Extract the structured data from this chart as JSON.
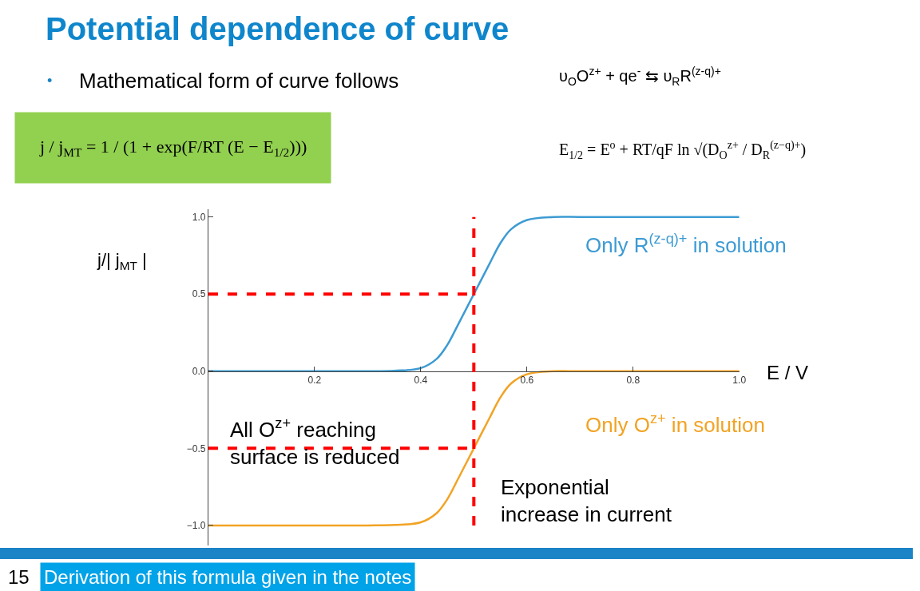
{
  "chart_data": {
    "type": "line",
    "title": "Potential dependence of curve",
    "xlabel": "E / V",
    "ylabel": "j/| j$_{MT}$ |",
    "x": [
      0,
      0.1,
      0.2,
      0.3,
      0.35,
      0.4,
      0.43,
      0.45,
      0.47,
      0.5,
      0.53,
      0.55,
      0.57,
      0.6,
      0.65,
      0.7,
      0.8,
      0.9,
      1.0
    ],
    "series": [
      {
        "name": "Only R$^{(z-q)+}$ in solution",
        "color": "#3d9bd3",
        "values": [
          0,
          0,
          0,
          0,
          0.003,
          0.02,
          0.08,
          0.17,
          0.3,
          0.5,
          0.7,
          0.83,
          0.92,
          0.98,
          1.0,
          1.0,
          1.0,
          1.0,
          1.0
        ]
      },
      {
        "name": "Only O$^{z+}$ in solution",
        "color": "#f2a324",
        "values": [
          -1,
          -1,
          -1,
          -1,
          -0.997,
          -0.98,
          -0.92,
          -0.83,
          -0.7,
          -0.5,
          -0.3,
          -0.17,
          -0.08,
          -0.02,
          0,
          0,
          0,
          0,
          0
        ]
      }
    ],
    "xlim": [
      0,
      1.0
    ],
    "ylim": [
      -1.13,
      1.05
    ],
    "xticks": [
      {
        "value": 0.2,
        "label": "0.2"
      },
      {
        "value": 0.4,
        "label": "0.4"
      },
      {
        "value": 0.6,
        "label": "0.6"
      },
      {
        "value": 0.8,
        "label": "0.8"
      },
      {
        "value": 1.0,
        "label": "1.0"
      }
    ],
    "yticks": [
      {
        "value": -1,
        "label": "−1.0"
      },
      {
        "value": -0.5,
        "label": "−0.5"
      },
      {
        "value": 0,
        "label": "0.0"
      },
      {
        "value": 0.5,
        "label": "0.5"
      },
      {
        "value": 1,
        "label": "1.0"
      }
    ],
    "ref_lines": [
      {
        "axis": "x",
        "value": 0.5,
        "color": "#ff0000",
        "line_style": "dashed"
      },
      {
        "axis": "y",
        "value": 0.5,
        "color": "#ff0000",
        "line_style": "dashed"
      },
      {
        "axis": "y",
        "value": -0.5,
        "color": "#ff0000",
        "line_style": "dashed"
      }
    ],
    "annotations": [
      "•",
      "Mathematical form of curve follows",
      "j / j$_{MT}$ = 1 / (1 + exp(F/RT (E − E$_{1/2}$)))",
      "υ$_{O}$O$^{z+}$ + qe$^{-}$ ⇆ υ$_{R}$R$^{(z-q)+}$",
      "E$_{1/2}$ = E$^{o}$ + RT/qF ln √(D$_{O}$$^{z+}$ / D$_{R}$$^{(z−q)+}$)",
      "All O$^{z+}$ reaching\nsurface is reduced",
      "Exponential\nincrease in current",
      "15",
      "Derivation of this formula given in the notes"
    ],
    "legend": false,
    "marker": "none",
    "line_style": "solid"
  }
}
